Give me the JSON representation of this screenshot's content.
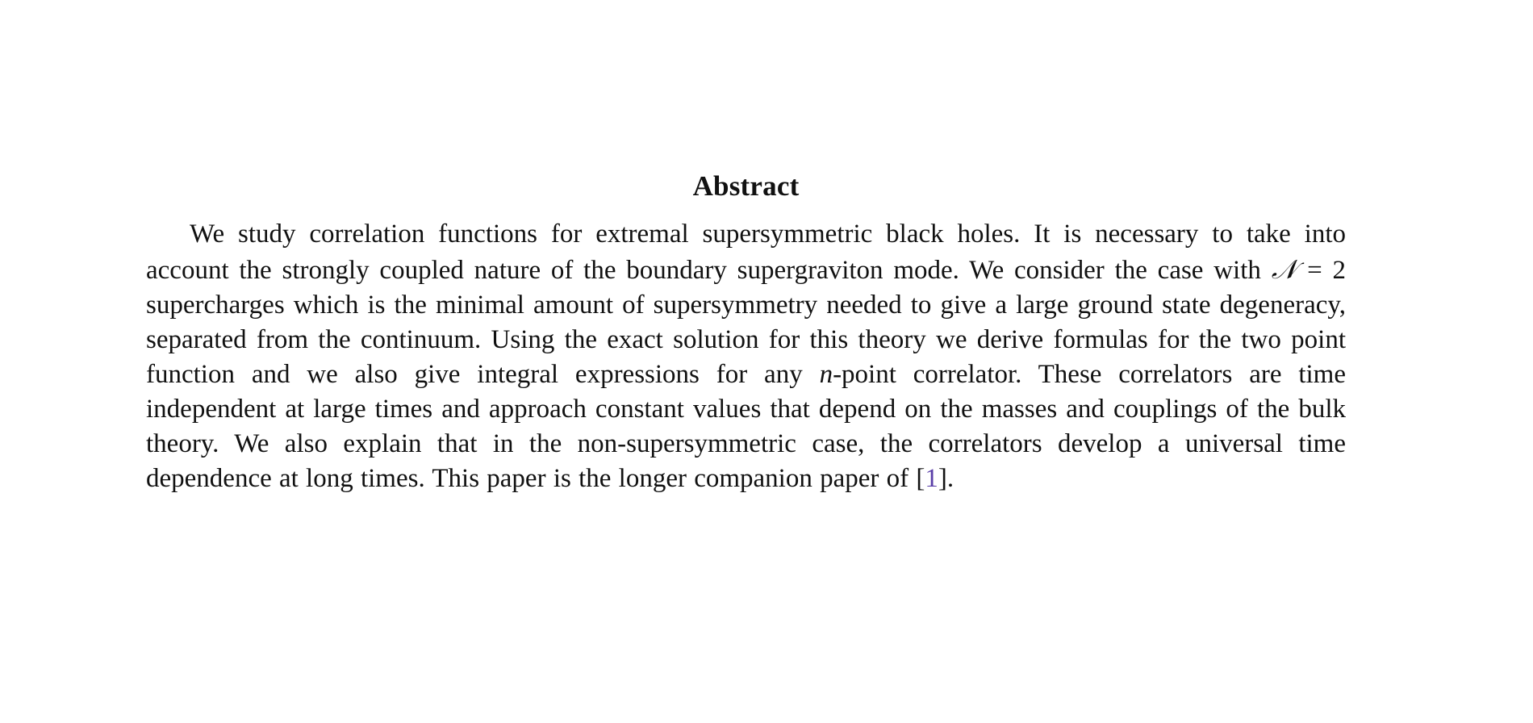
{
  "abstract": {
    "title": "Abstract",
    "segments": {
      "p1": "We study correlation functions for extremal supersymmetric black holes. It is necessary to take into account the strongly coupled nature of the boundary supergraviton mode. We consider the case with ",
      "math_N": "𝒩",
      "p2": " = 2 supercharges which is the minimal amount of supersymmetry needed to give a large ground state degeneracy, separated from the continuum. Using the exact solution for this theory we derive formulas for the two point function and we also give integral expressions for any ",
      "math_n": "n",
      "p3": "-point correlator. These correlators are time independent at large times and approach constant values that depend on the masses and couplings of the bulk theory. We also explain that in the non-supersymmetric case, the correlators develop a universal time dependence at long times. This paper is the longer companion paper of ",
      "cite_open": "[",
      "cite_ref": "1",
      "cite_close": "].",
      "cite_color": "#5a3fa8"
    }
  }
}
